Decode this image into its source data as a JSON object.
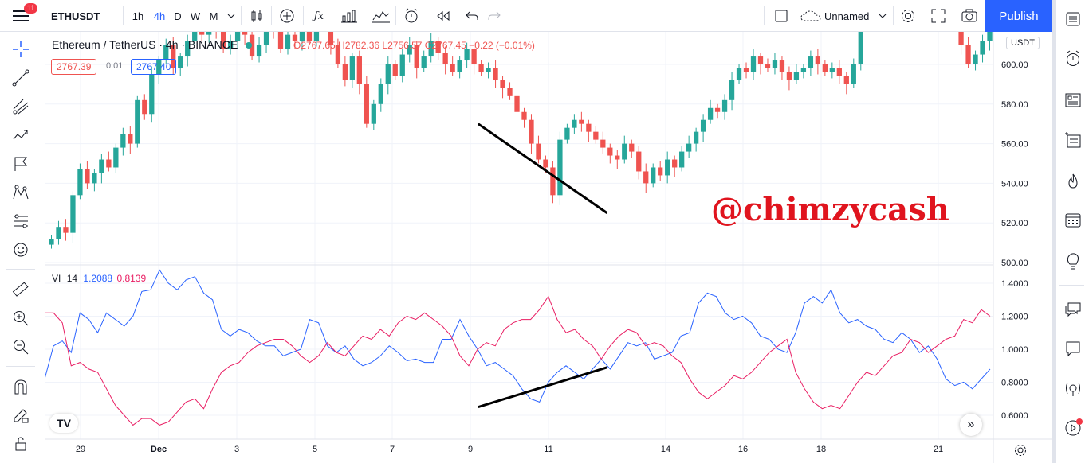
{
  "topbar": {
    "badge_count": "11",
    "symbol": "ETHUSDT",
    "intervals": [
      "1h",
      "4h",
      "D",
      "W",
      "M"
    ],
    "active_interval": "4h",
    "layout_name": "Unnamed",
    "publish_label": "Publish"
  },
  "legend": {
    "title": "Ethereum / TetherUS · 4h · BINANCE",
    "ohlc": "O2767.65  H2782.36  L2756.57  C2767.45  −0.22 (−0.01%)",
    "bid": "2767.39",
    "spread": "0.01",
    "ask": "2767.40",
    "currency": "USDT"
  },
  "indicator": {
    "name": "VI",
    "length": "14",
    "plus_value": "1.2088",
    "minus_value": "0.8139",
    "plus_color": "#2962ff",
    "minus_color": "#e91e63"
  },
  "watermark": "@chimzycash",
  "colors": {
    "up": "#26a69a",
    "down": "#ef5350",
    "accent": "#2962ff"
  },
  "chart_data": [
    {
      "type": "candlestick",
      "title": "Ethereum / TetherUS · 4h · BINANCE",
      "y_tick_labels": [
        "600.00",
        "580.00",
        "560.00",
        "540.00",
        "520.00",
        "500.00"
      ],
      "ylim": [
        500,
        620
      ],
      "x_tick_labels": [
        "29",
        "Dec",
        "3",
        "5",
        "7",
        "9",
        "11",
        "14",
        "16",
        "18",
        "21"
      ],
      "closes": [
        512,
        518,
        515,
        534,
        547,
        540,
        545,
        552,
        548,
        558,
        565,
        560,
        582,
        575,
        595,
        602,
        610,
        598,
        604,
        612,
        618,
        615,
        625,
        618,
        608,
        612,
        620,
        615,
        604,
        610,
        622,
        618,
        608,
        615,
        612,
        620,
        612,
        628,
        632,
        610,
        600,
        592,
        604,
        590,
        570,
        580,
        590,
        600,
        594,
        605,
        610,
        598,
        604,
        612,
        606,
        600,
        596,
        602,
        608,
        600,
        596,
        598,
        592,
        588,
        584,
        576,
        572,
        560,
        552,
        548,
        534,
        562,
        568,
        572,
        570,
        566,
        562,
        558,
        554,
        552,
        560,
        556,
        546,
        540,
        548,
        544,
        552,
        548,
        556,
        560,
        566,
        572,
        578,
        576,
        582,
        592,
        598,
        596,
        604,
        600,
        598,
        602,
        596,
        592,
        596,
        598,
        604,
        600,
        596,
        598,
        594,
        590,
        600,
        630,
        650,
        660,
        642,
        650,
        660,
        655,
        665,
        660,
        650,
        640,
        656,
        645,
        630,
        610,
        600,
        605,
        612,
        622
      ],
      "trendline": {
        "from": [
          9.2,
          570
        ],
        "to": [
          12.5,
          525
        ]
      }
    },
    {
      "type": "line",
      "title": "VI 14",
      "y_tick_labels": [
        "1.4000",
        "1.2000",
        "1.0000",
        "0.8000",
        "0.6000"
      ],
      "ylim": [
        0.5,
        1.45
      ],
      "series": [
        {
          "name": "VI+",
          "color": "#2962ff",
          "values": [
            0.82,
            1.02,
            1.05,
            0.98,
            1.22,
            1.18,
            1.1,
            1.22,
            1.18,
            1.14,
            1.2,
            1.35,
            1.36,
            1.48,
            1.4,
            1.36,
            1.42,
            1.44,
            1.34,
            1.3,
            1.12,
            1.08,
            1.12,
            1.1,
            1.05,
            1.02,
            1.02,
            0.96,
            0.98,
            1.0,
            1.18,
            1.16,
            1.02,
            0.98,
            1.02,
            0.94,
            0.9,
            0.92,
            0.96,
            1.02,
            0.98,
            0.93,
            0.94,
            0.92,
            0.92,
            1.06,
            1.06,
            1.18,
            1.08,
            1.0,
            0.9,
            0.92,
            0.88,
            0.84,
            0.76,
            0.7,
            0.68,
            0.8,
            0.86,
            0.9,
            0.86,
            0.82,
            0.88,
            0.94,
            0.88,
            0.96,
            1.04,
            1.02,
            1.04,
            0.94,
            0.96,
            0.98,
            1.08,
            1.1,
            1.28,
            1.34,
            1.32,
            1.22,
            1.18,
            1.2,
            1.16,
            1.08,
            1.06,
            1.0,
            0.98,
            1.1,
            1.28,
            1.32,
            1.28,
            1.36,
            1.22,
            1.16,
            1.18,
            1.14,
            1.12,
            1.06,
            1.04,
            1.1,
            1.06,
            0.98,
            1.02,
            0.94,
            0.82,
            0.78,
            0.8,
            0.76,
            0.82,
            0.88
          ]
        },
        {
          "name": "VI-",
          "color": "#e91e63",
          "values": [
            1.22,
            1.22,
            1.16,
            0.9,
            0.92,
            0.88,
            0.86,
            0.76,
            0.66,
            0.6,
            0.54,
            0.58,
            0.58,
            0.54,
            0.56,
            0.62,
            0.68,
            0.7,
            0.64,
            0.76,
            0.86,
            0.9,
            0.92,
            0.98,
            1.02,
            1.04,
            1.06,
            1.06,
            1.02,
            0.96,
            0.92,
            0.96,
            1.04,
            0.98,
            0.96,
            1.02,
            1.08,
            1.06,
            1.12,
            1.08,
            1.16,
            1.2,
            1.18,
            1.22,
            1.18,
            1.14,
            1.08,
            0.96,
            0.9,
            1.0,
            1.04,
            1.02,
            1.12,
            1.16,
            1.18,
            1.18,
            1.24,
            1.32,
            1.18,
            1.1,
            1.12,
            1.06,
            1.02,
            0.94,
            1.02,
            1.08,
            1.12,
            1.1,
            1.02,
            1.04,
            1.02,
            0.96,
            0.92,
            0.82,
            0.74,
            0.7,
            0.74,
            0.78,
            0.84,
            0.82,
            0.86,
            0.92,
            0.98,
            1.02,
            1.06,
            0.86,
            0.76,
            0.68,
            0.64,
            0.66,
            0.64,
            0.72,
            0.8,
            0.86,
            0.84,
            0.9,
            0.96,
            0.98,
            1.06,
            1.04,
            0.98,
            1.02,
            1.06,
            1.08,
            1.18,
            1.16,
            1.24,
            1.2
          ]
        }
      ],
      "trendline": {
        "from": [
          9.2,
          0.65
        ],
        "to": [
          12.5,
          0.89
        ]
      }
    }
  ]
}
